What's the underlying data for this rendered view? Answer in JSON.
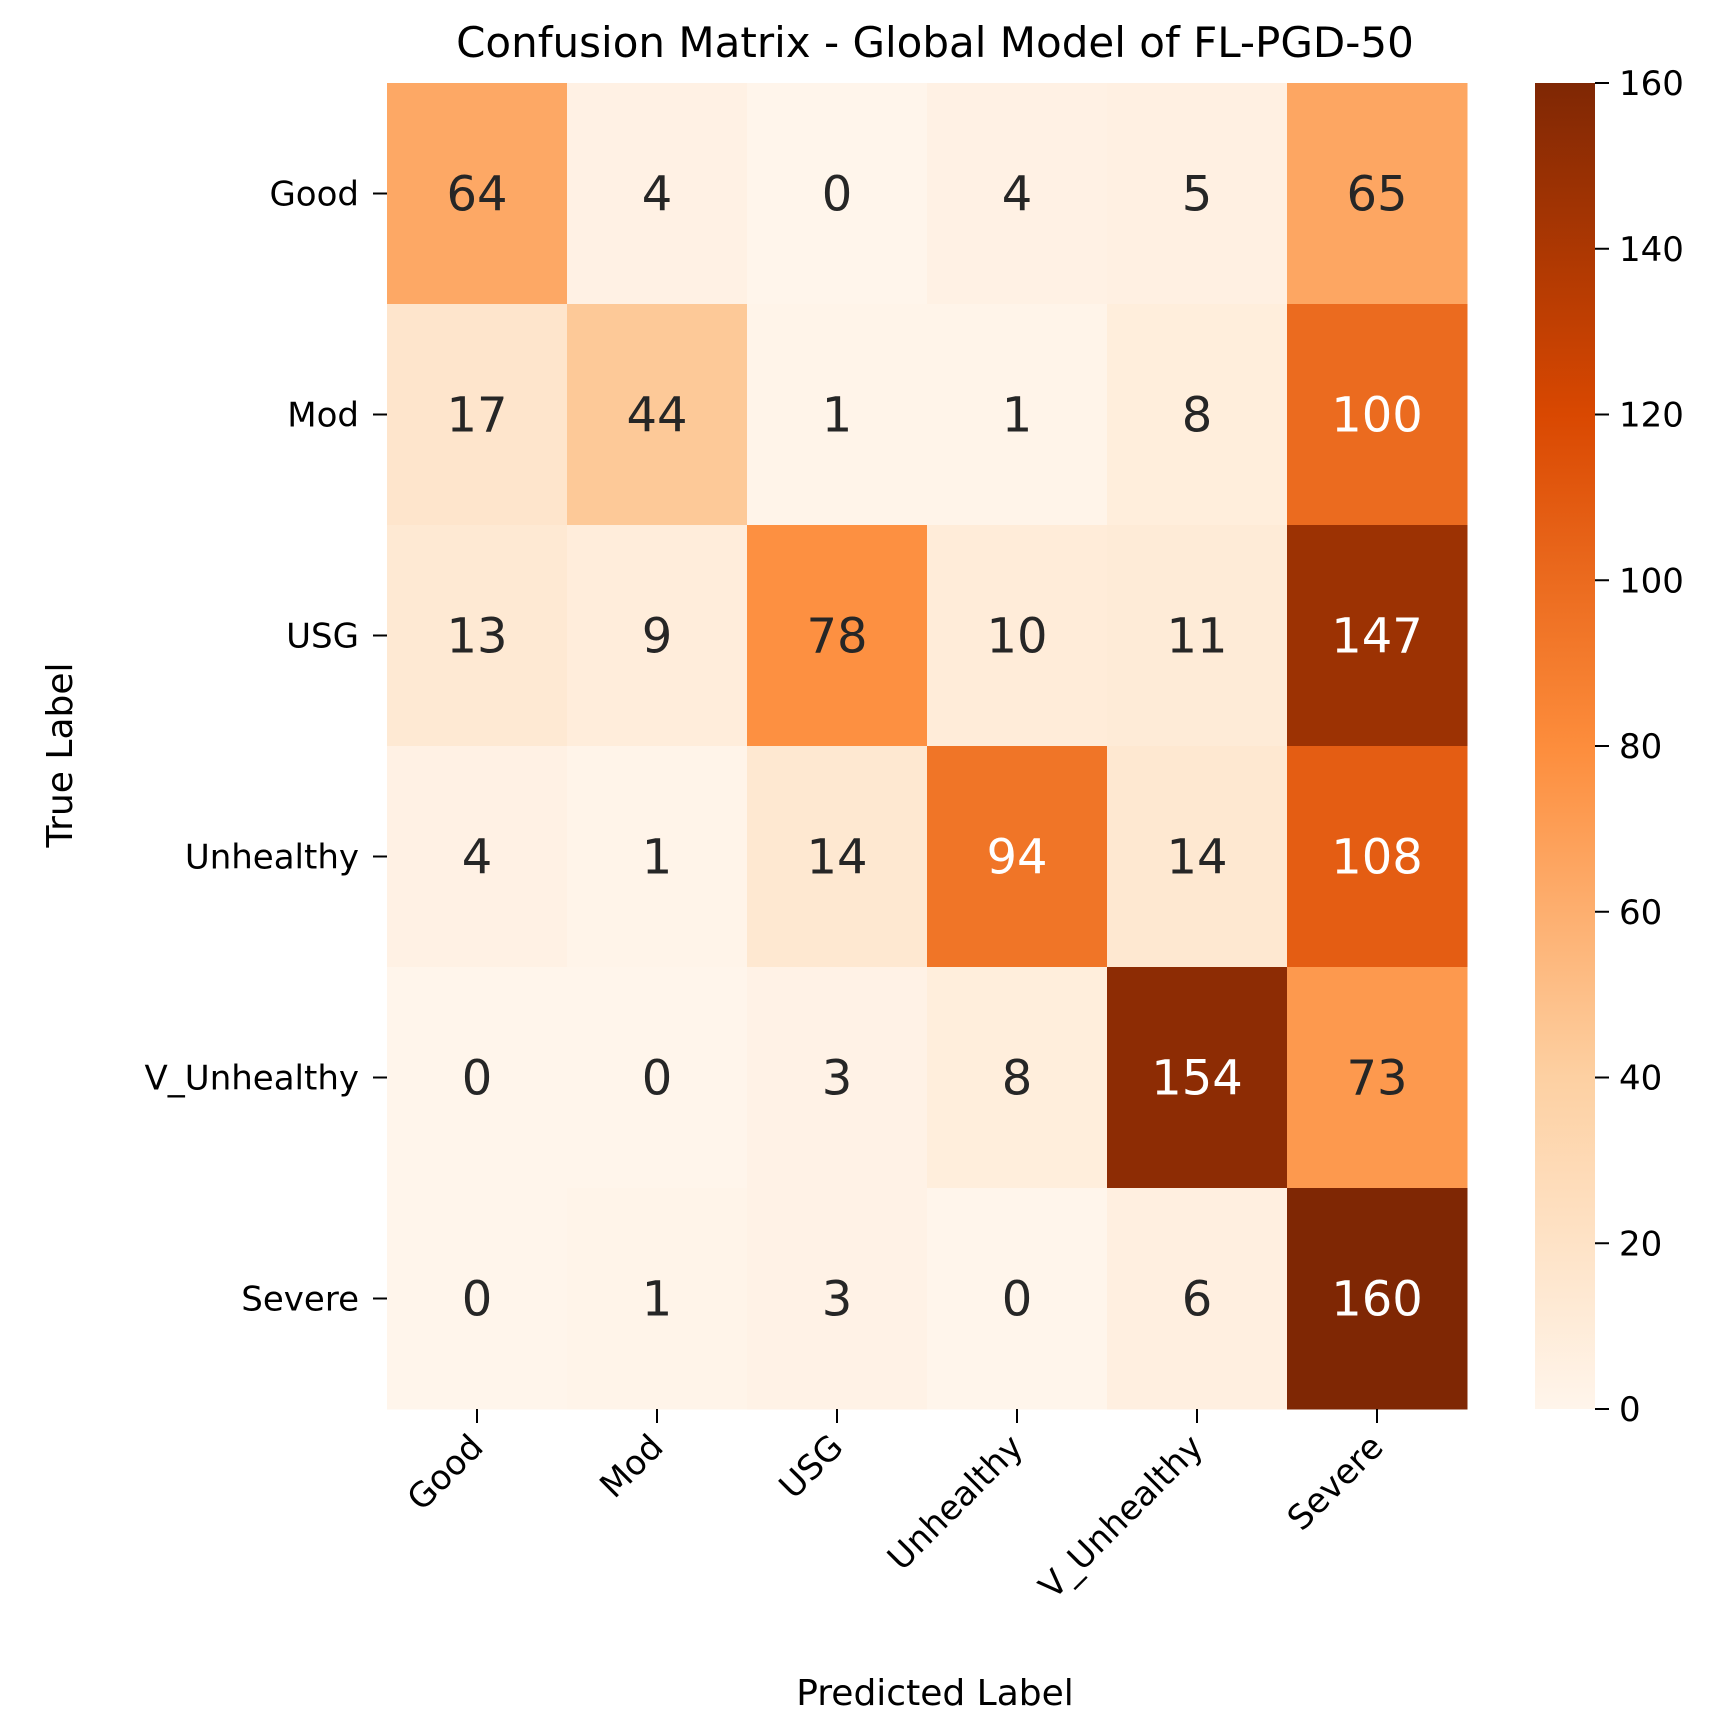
{
  "chart_data": {
    "type": "heatmap",
    "title": "Confusion Matrix - Global Model of FL-PGD-50",
    "xlabel": "Predicted Label",
    "ylabel": "True Label",
    "x_categories": [
      "Good",
      "Mod",
      "USG",
      "Unhealthy",
      "V_Unhealthy",
      "Severe"
    ],
    "y_categories": [
      "Good",
      "Mod",
      "USG",
      "Unhealthy",
      "V_Unhealthy",
      "Severe"
    ],
    "matrix": [
      [
        64,
        4,
        0,
        4,
        5,
        65
      ],
      [
        17,
        44,
        1,
        1,
        8,
        100
      ],
      [
        13,
        9,
        78,
        10,
        11,
        147
      ],
      [
        4,
        1,
        14,
        94,
        14,
        108
      ],
      [
        0,
        0,
        3,
        8,
        154,
        73
      ],
      [
        0,
        1,
        3,
        0,
        6,
        160
      ]
    ],
    "colormap": "Oranges",
    "vmin": 0,
    "vmax": 160,
    "colorbar_ticks": [
      0,
      20,
      40,
      60,
      80,
      100,
      120,
      140,
      160
    ],
    "colors": {
      "low": "#fff5eb",
      "mid_low": "#fdd0a2",
      "mid": "#fd8d3c",
      "mid_high": "#d94801",
      "high": "#7f2704",
      "text_dark": "#262626",
      "text_light": "#ffffff"
    }
  }
}
